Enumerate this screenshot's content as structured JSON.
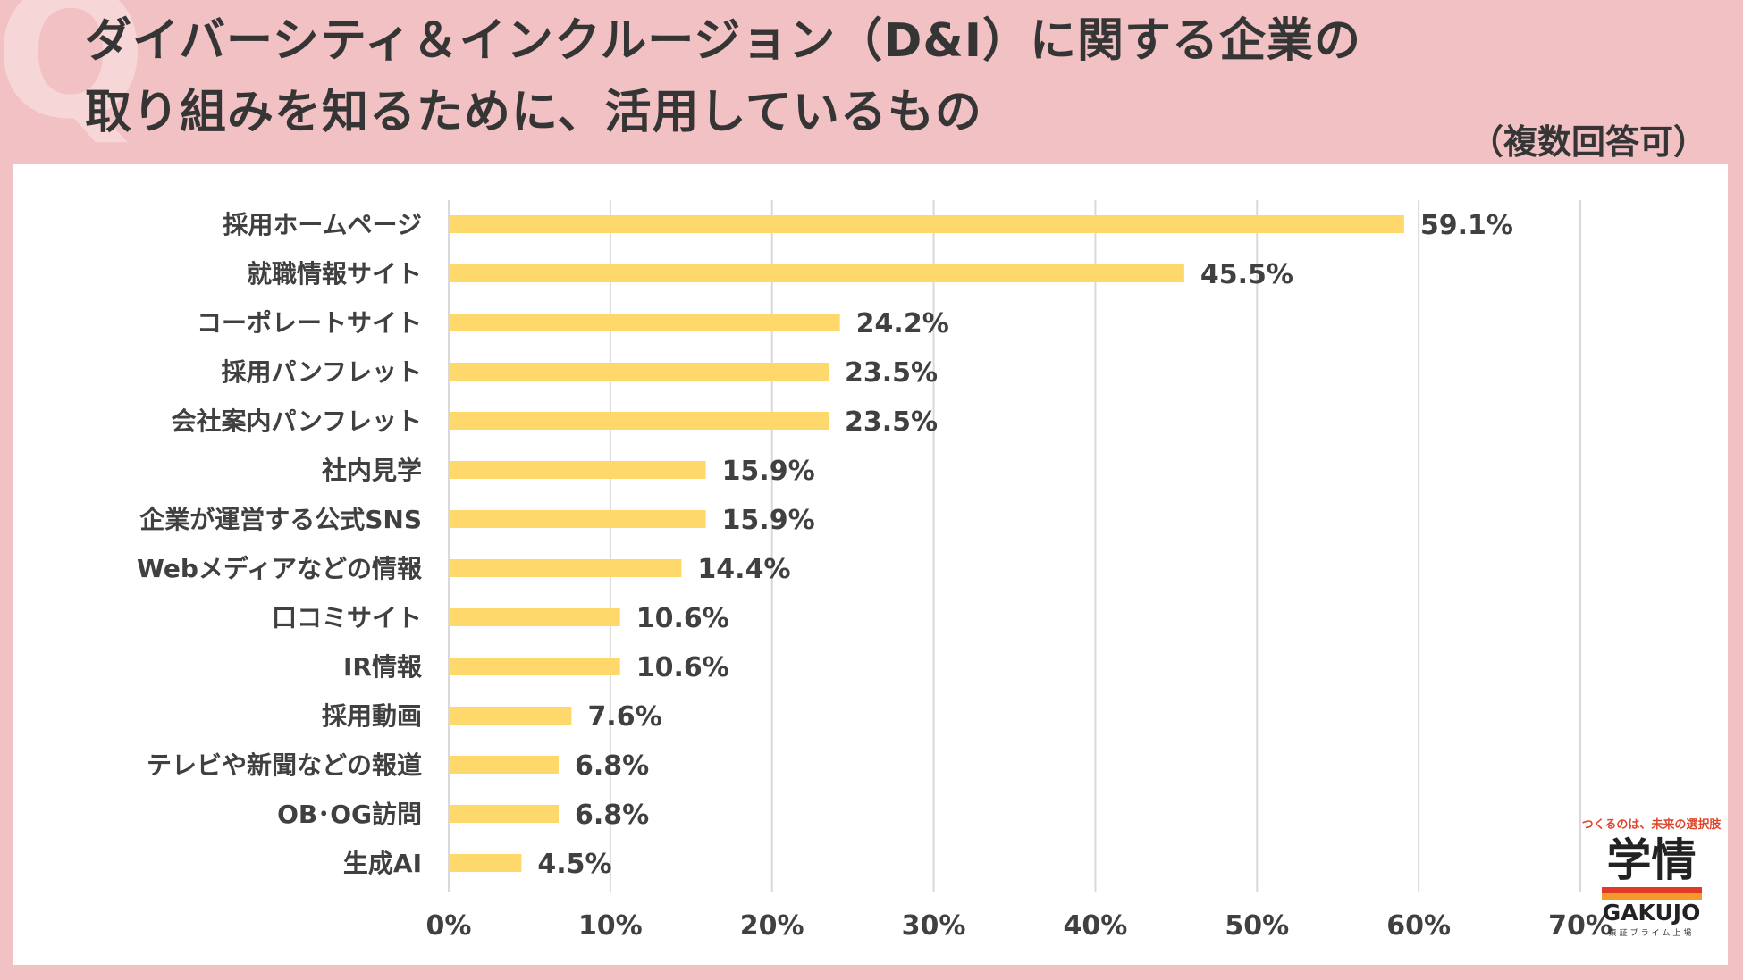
{
  "header": {
    "q_mark": "Q",
    "title_line1": "ダイバーシティ＆インクルージョン（D&I）に関する企業の",
    "title_line2": "取り組みを知るために、活用しているもの",
    "note": "（複数回答可）"
  },
  "chart_data": {
    "type": "bar",
    "orientation": "horizontal",
    "title": "ダイバーシティ＆インクルージョン（D&I）に関する企業の取り組みを知るために、活用しているもの",
    "categories": [
      "採用ホームページ",
      "就職情報サイト",
      "コーポレートサイト",
      "採用パンフレット",
      "会社案内パンフレット",
      "社内見学",
      "企業が運営する公式SNS",
      "Webメディアなどの情報",
      "口コミサイト",
      "IR情報",
      "採用動画",
      "テレビや新聞などの報道",
      "OB･OG訪問",
      "生成AI"
    ],
    "values": [
      59.1,
      45.5,
      24.2,
      23.5,
      23.5,
      15.9,
      15.9,
      14.4,
      10.6,
      10.6,
      7.6,
      6.8,
      6.8,
      4.5
    ],
    "value_labels": [
      "59.1%",
      "45.5%",
      "24.2%",
      "23.5%",
      "23.5%",
      "15.9%",
      "15.9%",
      "14.4%",
      "10.6%",
      "10.6%",
      "7.6%",
      "6.8%",
      "6.8%",
      "4.5%"
    ],
    "xlim": [
      0,
      70
    ],
    "xticks": [
      0,
      10,
      20,
      30,
      40,
      50,
      60,
      70
    ],
    "xtick_labels": [
      "0%",
      "10%",
      "20%",
      "30%",
      "40%",
      "50%",
      "60%",
      "70%"
    ],
    "grid": true,
    "xlabel": "",
    "ylabel": "",
    "bar_color": "#ffd86b",
    "grid_color": "#d9d9d9"
  },
  "brand": {
    "tagline": "つくるのは、未来の選択肢",
    "kanji": "学情",
    "name": "GAKUJO",
    "sub": "東証プライム上場"
  },
  "colors": {
    "background": "#f1c1c3",
    "panel": "#ffffff",
    "text": "#353535",
    "accent_red": "#e23a25",
    "accent_orange": "#f39a2a"
  }
}
